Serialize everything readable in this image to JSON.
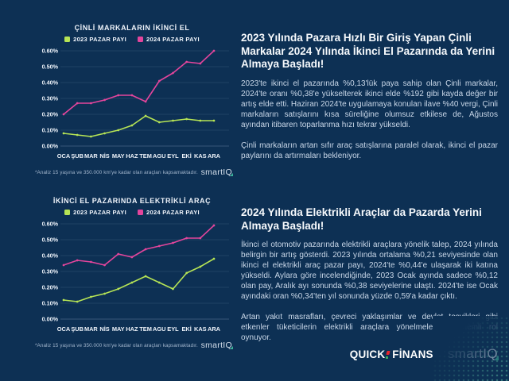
{
  "page": {
    "background": "#0d3054",
    "accent_teal": "#3bb39a",
    "accent_red": "#e8262d",
    "accent_green": "#3fae62"
  },
  "chart_data": [
    {
      "type": "line",
      "title": "ÇİNLİ MARKALARIN İKİNCİ EL",
      "categories": [
        "OCA",
        "ŞUB",
        "MAR",
        "NİS",
        "MAY",
        "HAZ",
        "TEM",
        "AGU",
        "EYL",
        "EKİ",
        "KAS",
        "ARA"
      ],
      "series": [
        {
          "name": "2023 PAZAR PAYI",
          "color": "#b6e455",
          "values": [
            0.08,
            0.07,
            0.06,
            0.08,
            0.1,
            0.13,
            0.19,
            0.15,
            0.16,
            0.17,
            0.16,
            0.16
          ]
        },
        {
          "name": "2024 PAZAR PAYI",
          "color": "#e4459c",
          "values": [
            0.2,
            0.27,
            0.27,
            0.29,
            0.32,
            0.32,
            0.28,
            0.41,
            0.46,
            0.53,
            0.52,
            0.6
          ]
        }
      ],
      "ylim": [
        0,
        0.6
      ],
      "ytick_step": 0.1,
      "yticks": [
        "0.00%",
        "0.10%",
        "0.20%",
        "0.30%",
        "0.40%",
        "0.50%",
        "0.60%"
      ],
      "grid": true,
      "legend_position": "top",
      "footnote": "*Analiz 15 yaşına ve 350.000 km'ye kadar olan araçları kapsamaktadır.",
      "brand_prefix": "smartI",
      "brand_q": "Q"
    },
    {
      "type": "line",
      "title": "İKİNCİ EL PAZARINDA ELEKTRİKLİ ARAÇ",
      "categories": [
        "OCA",
        "ŞUB",
        "MAR",
        "NİS",
        "MAY",
        "HAZ",
        "TEM",
        "AGU",
        "EYL",
        "EKİ",
        "KAS",
        "ARA"
      ],
      "series": [
        {
          "name": "2023 PAZAR PAYI",
          "color": "#b6e455",
          "values": [
            0.12,
            0.11,
            0.14,
            0.16,
            0.19,
            0.23,
            0.27,
            0.23,
            0.19,
            0.29,
            0.33,
            0.38
          ]
        },
        {
          "name": "2024 PAZAR PAYI",
          "color": "#e4459c",
          "values": [
            0.34,
            0.37,
            0.36,
            0.34,
            0.41,
            0.39,
            0.44,
            0.46,
            0.48,
            0.51,
            0.51,
            0.59
          ]
        }
      ],
      "ylim": [
        0,
        0.6
      ],
      "ytick_step": 0.1,
      "yticks": [
        "0.00%",
        "0.10%",
        "0.20%",
        "0.30%",
        "0.40%",
        "0.50%",
        "0.60%"
      ],
      "grid": true,
      "legend_position": "top",
      "footnote": "*Analiz 15 yaşına ve 350.000 km'ye kadar olan araçları kapsamaktadır.",
      "brand_prefix": "smartI",
      "brand_q": "Q"
    }
  ],
  "sections": [
    {
      "heading": "2023 Yılında Pazara Hızlı Bir Giriş Yapan Çinli Markalar 2024 Yılında İkinci El Pazarında da Yerini Almaya Başladı!",
      "paragraphs": [
        "2023'te ikinci el pazarında %0,13'lük paya sahip olan Çinli markalar, 2024'te oranı %0,38'e yükselterek ikinci elde %192 gibi kayda değer bir artış elde etti. Haziran 2024'te uygulamaya konulan ilave %40 vergi, Çinli markaların satışlarını kısa süreliğine olumsuz etkilese de, Ağustos ayından itibaren toparlanma hızı tekrar yükseldi.",
        "Çinli markaların artan sıfır araç satışlarına paralel olarak, ikinci el pazar paylarını da artırmaları bekleniyor."
      ]
    },
    {
      "heading": "2024 Yılında Elektrikli Araçlar da Pazarda Yerini Almaya Başladı!",
      "paragraphs": [
        "İkinci el otomotiv pazarında elektrikli araçlara yönelik talep, 2024 yılında belirgin bir artış gösterdi. 2023 yılında ortalama %0,21 seviyesinde olan ikinci el elektrikli araç pazar payı, 2024'te %0,44'e ulaşarak iki katına yükseldi. Aylara göre incelendiğinde, 2023 Ocak ayında sadece %0,12 olan pay, Aralık ayı sonunda %0,38 seviyelerine ulaştı. 2024'te ise Ocak ayındaki oran %0,34'ten yıl sonunda yüzde 0,59'a kadar çıktı.",
        "Artan yakıt masrafları, çevreci yaklaşımlar ve devlet teşvikleri gibi etkenler tüketicilerin elektrikli araçlara yönelmelerinde önemli rol oynuyor."
      ]
    }
  ],
  "footer": {
    "quick": "QUICK",
    "finans": "FİNANS",
    "smartiq_prefix": "smartI",
    "smartiq_q": "Q"
  }
}
